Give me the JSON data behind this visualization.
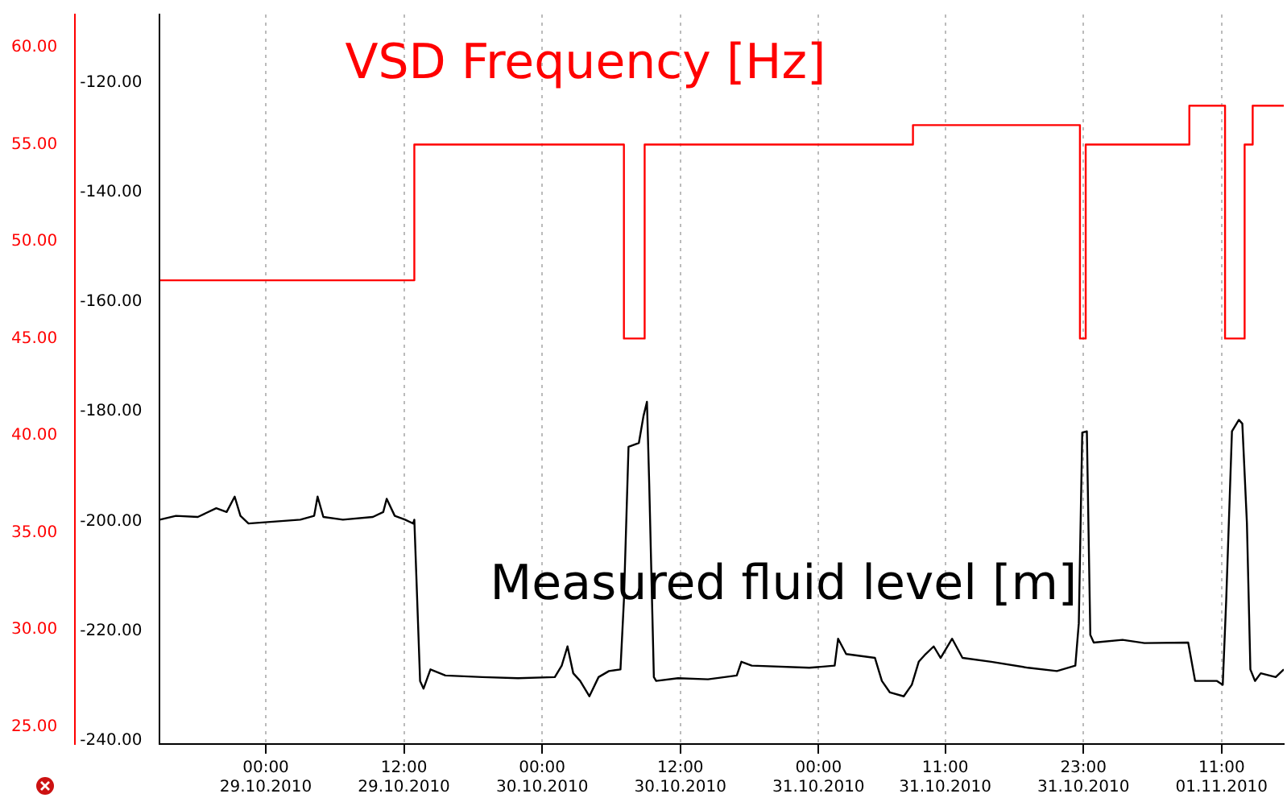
{
  "chart_data": {
    "type": "line",
    "grid": "x",
    "legend": false,
    "marker": "none",
    "xlim": [
      "2010-10-28T14:48",
      "2010-11-01T16:24"
    ],
    "xticks": [
      {
        "value": "2010-10-29T00:00",
        "label": "00:00 29.10.2010"
      },
      {
        "value": "2010-10-29T12:00",
        "label": "12:00 29.10.2010"
      },
      {
        "value": "2010-10-30T00:00",
        "label": "00:00 30.10.2010"
      },
      {
        "value": "2010-10-30T12:00",
        "label": "12:00 30.10.2010"
      },
      {
        "value": "2010-10-31T00:00",
        "label": "00:00 31.10.2010"
      },
      {
        "value": "2010-10-31T11:00",
        "label": "11:00 31.10.2010"
      },
      {
        "value": "2010-10-31T23:00",
        "label": "23:00 31.10.2010"
      },
      {
        "value": "2010-11-01T11:00",
        "label": "11:00 01.11.2010"
      }
    ],
    "ylim": [
      24.1,
      61.7
    ],
    "yticks": [
      {
        "value": 25,
        "label": "25.00"
      },
      {
        "value": 30,
        "label": "30.00"
      },
      {
        "value": 35,
        "label": "35.00"
      },
      {
        "value": 40,
        "label": "40.00"
      },
      {
        "value": 45,
        "label": "45.00"
      },
      {
        "value": 50,
        "label": "50.00"
      },
      {
        "value": 55,
        "label": "55.00"
      },
      {
        "value": 60,
        "label": "60.00"
      }
    ],
    "y2lim": [
      -240.6,
      -107.6
    ],
    "y2ticks": [
      {
        "value": -240,
        "label": "-240.00"
      },
      {
        "value": -220,
        "label": "-220.00"
      },
      {
        "value": -200,
        "label": "-200.00"
      },
      {
        "value": -180,
        "label": "-180.00"
      },
      {
        "value": -160,
        "label": "-160.00"
      },
      {
        "value": -140,
        "label": "-140.00"
      },
      {
        "value": -120,
        "label": "-120.00"
      }
    ],
    "series": [
      {
        "name": "VSD Frequency [Hz]",
        "type": "step",
        "color": "#ff0000",
        "axis": "y",
        "x": [
          "2010-10-28T14:48",
          "2010-10-29T12:54",
          "2010-10-30T07:06",
          "2010-10-30T08:54",
          "2010-10-31T08:12",
          "2010-10-31T22:42",
          "2010-10-31T23:12",
          "2010-11-01T08:12",
          "2010-11-01T11:18",
          "2010-11-01T13:00",
          "2010-11-01T13:42",
          "2010-11-01T16:24"
        ],
        "values": [
          48,
          55,
          45,
          55,
          56,
          45,
          55,
          57,
          45,
          55,
          57,
          57
        ]
      },
      {
        "name": "Measured fluid level [m]",
        "color": "#000000",
        "axis": "y2",
        "x": [
          "2010-10-28T14:48",
          "2010-10-28T16:12",
          "2010-10-28T18:06",
          "2010-10-28T19:42",
          "2010-10-28T20:36",
          "2010-10-28T21:18",
          "2010-10-28T21:48",
          "2010-10-28T22:30",
          "2010-10-29T00:24",
          "2010-10-29T03:00",
          "2010-10-29T04:12",
          "2010-10-29T04:30",
          "2010-10-29T05:00",
          "2010-10-29T06:42",
          "2010-10-29T09:18",
          "2010-10-29T10:12",
          "2010-10-29T10:30",
          "2010-10-29T11:12",
          "2010-10-29T12:06",
          "2010-10-29T12:48",
          "2010-10-29T12:54",
          "2010-10-29T13:24",
          "2010-10-29T13:42",
          "2010-10-29T14:18",
          "2010-10-29T15:36",
          "2010-10-29T18:48",
          "2010-10-29T21:54",
          "2010-10-30T01:06",
          "2010-10-30T01:42",
          "2010-10-30T02:12",
          "2010-10-30T02:42",
          "2010-10-30T03:18",
          "2010-10-30T04:06",
          "2010-10-30T04:54",
          "2010-10-30T05:48",
          "2010-10-30T06:48",
          "2010-10-30T07:06",
          "2010-10-30T07:30",
          "2010-10-30T08:24",
          "2010-10-30T08:48",
          "2010-10-30T09:06",
          "2010-10-30T09:18",
          "2010-10-30T09:42",
          "2010-10-30T09:54",
          "2010-10-30T11:48",
          "2010-10-30T14:24",
          "2010-10-30T16:54",
          "2010-10-30T17:18",
          "2010-10-30T18:12",
          "2010-10-30T23:12",
          "2010-10-31T01:24",
          "2010-10-31T01:42",
          "2010-10-31T02:24",
          "2010-10-31T04:54",
          "2010-10-31T05:30",
          "2010-10-31T06:12",
          "2010-10-31T07:24",
          "2010-10-31T08:06",
          "2010-10-31T08:42",
          "2010-10-31T09:18",
          "2010-10-31T10:00",
          "2010-10-31T10:36",
          "2010-10-31T11:36",
          "2010-10-31T12:30",
          "2010-10-31T15:00",
          "2010-10-31T18:12",
          "2010-10-31T20:42",
          "2010-10-31T22:18",
          "2010-10-31T22:36",
          "2010-10-31T22:54",
          "2010-10-31T23:18",
          "2010-10-31T23:36",
          "2010-10-31T23:54",
          "2010-11-01T02:24",
          "2010-11-01T04:18",
          "2010-11-01T08:06",
          "2010-11-01T08:42",
          "2010-11-01T10:36",
          "2010-11-01T11:06",
          "2010-11-01T11:24",
          "2010-11-01T11:54",
          "2010-11-01T12:30",
          "2010-11-01T12:48",
          "2010-11-01T13:12",
          "2010-11-01T13:30",
          "2010-11-01T13:54",
          "2010-11-01T14:24",
          "2010-11-01T15:42",
          "2010-11-01T16:24"
        ],
        "values": [
          -199.7,
          -199.0,
          -199.2,
          -197.6,
          -198.3,
          -195.5,
          -199.0,
          -200.4,
          -200.1,
          -199.7,
          -199.0,
          -195.5,
          -199.2,
          -199.7,
          -199.2,
          -198.3,
          -195.9,
          -199.0,
          -199.7,
          -200.4,
          -199.7,
          -229.1,
          -230.5,
          -227.0,
          -228.1,
          -228.4,
          -228.6,
          -228.4,
          -226.3,
          -222.8,
          -227.7,
          -229.1,
          -231.9,
          -228.4,
          -227.3,
          -227.0,
          -214.4,
          -186.4,
          -185.7,
          -180.8,
          -178.2,
          -193.4,
          -228.4,
          -229.1,
          -228.6,
          -228.8,
          -228.1,
          -225.6,
          -226.3,
          -226.7,
          -226.3,
          -221.4,
          -224.2,
          -224.9,
          -229.1,
          -231.2,
          -231.9,
          -229.8,
          -225.6,
          -224.2,
          -222.8,
          -224.9,
          -221.4,
          -224.9,
          -225.6,
          -226.7,
          -227.3,
          -226.3,
          -218.6,
          -183.8,
          -183.6,
          -220.7,
          -222.1,
          -221.6,
          -222.2,
          -222.1,
          -229.1,
          -229.1,
          -229.8,
          -214.4,
          -183.6,
          -181.5,
          -182.2,
          -200.4,
          -227.0,
          -229.1,
          -227.7,
          -228.4,
          -227.0
        ]
      }
    ]
  }
}
